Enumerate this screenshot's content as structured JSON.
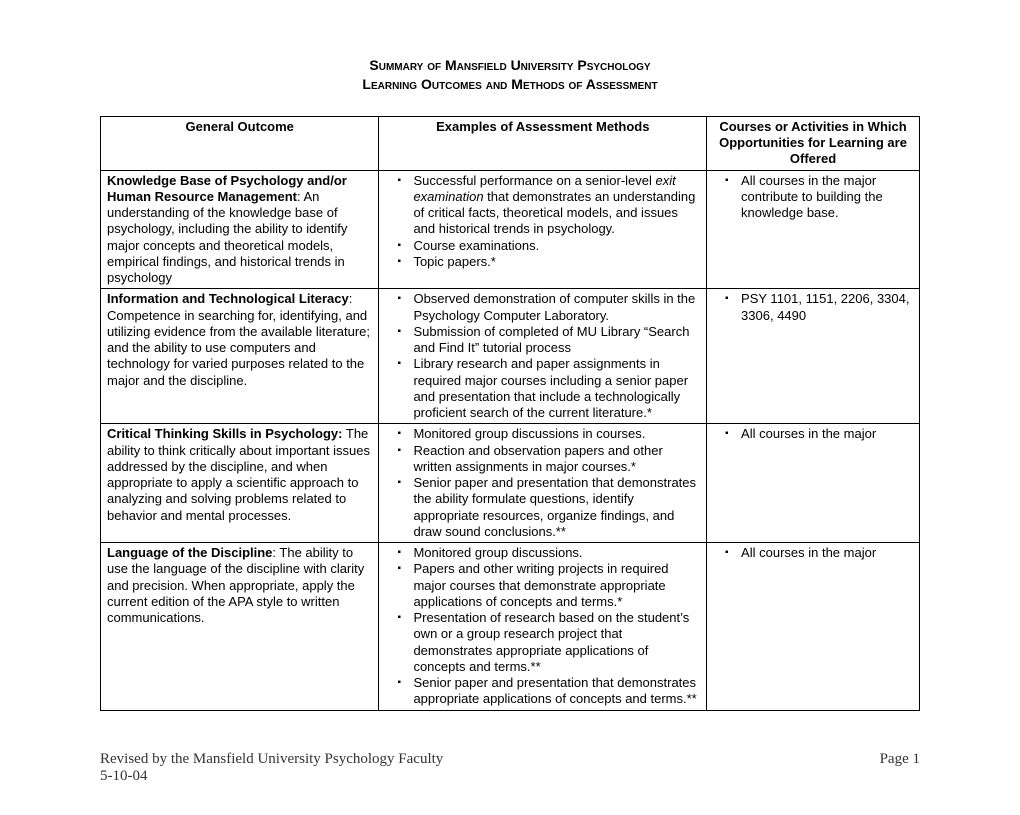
{
  "title_line1": "Summary of Mansfield University Psychology",
  "title_line2": "Learning Outcomes and Methods of Assessment",
  "columns": {
    "c1": "General Outcome",
    "c2": "Examples of Assessment Methods",
    "c3": "Courses or Activities in Which Opportunities for Learning are Offered"
  },
  "rows": [
    {
      "outcome_title": "Knowledge Base of Psychology and/or Human Resource Management",
      "outcome_rest": ": An understanding of the knowledge base of psychology, including the ability to identify major concepts and theoretical models, empirical findings, and historical trends in psychology",
      "assessments": [
        {
          "pre": "Successful performance on a senior-level ",
          "ital": "exit examination",
          "post": " that demonstrates an understanding of critical facts, theoretical models, and issues and historical trends in psychology."
        },
        {
          "text": "Course examinations."
        },
        {
          "text": "Topic papers.*"
        }
      ],
      "courses": [
        "All courses in the major contribute to building the knowledge base."
      ]
    },
    {
      "outcome_title": "Information and Technological Literacy",
      "outcome_rest": ": Competence in searching for, identifying, and utilizing evidence from the available literature; and the ability to use computers and technology for varied purposes related to the major and the discipline.",
      "assessments": [
        {
          "text": "Observed demonstration of computer skills in the Psychology Computer Laboratory."
        },
        {
          "text": "Submission of completed of MU Library “Search and Find It” tutorial process"
        },
        {
          "text": "Library research and paper assignments in required major courses including a senior paper and presentation that include a technologically proficient search of the current literature.*"
        }
      ],
      "courses": [
        "PSY 1101, 1151, 2206, 3304, 3306, 4490"
      ]
    },
    {
      "outcome_title": "Critical Thinking Skills in Psychology:",
      "outcome_rest": " The ability to think critically about important issues addressed by the discipline, and when appropriate to apply a scientific approach to analyzing and solving problems related to behavior and mental processes.",
      "assessments": [
        {
          "text": "Monitored group discussions in courses."
        },
        {
          "text": "Reaction and observation papers and other written assignments in major courses.*"
        },
        {
          "text": "Senior paper and presentation that demonstrates the ability formulate questions, identify appropriate resources, organize findings, and draw sound conclusions.**"
        }
      ],
      "courses": [
        "All courses in the major"
      ]
    },
    {
      "outcome_title": "Language of the Discipline",
      "outcome_rest": ": The ability to use the language of the discipline with clarity and precision. When appropriate, apply the current edition of the APA style to written communications.",
      "assessments": [
        {
          "text": "Monitored group discussions."
        },
        {
          "text": "Papers and other writing projects in required major courses that demonstrate appropriate applications of concepts and terms.*"
        },
        {
          "text": "Presentation of research based on the student’s own or a group research project that demonstrates appropriate applications of concepts and terms.**"
        },
        {
          "text": "Senior paper and presentation that demonstrates appropriate applications of concepts and terms.**"
        }
      ],
      "courses": [
        "All courses in the major"
      ]
    }
  ],
  "footer": {
    "revised_by": "Revised by the Mansfield University Psychology Faculty",
    "date": "5-10-04",
    "page_label": "Page 1"
  }
}
